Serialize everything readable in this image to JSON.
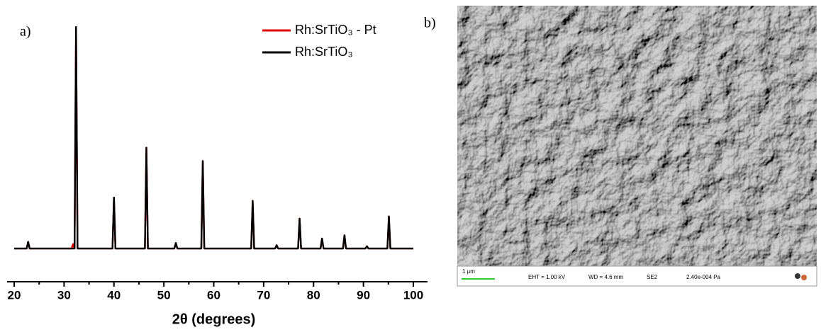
{
  "chart_data": {
    "type": "line",
    "annotation": "a)",
    "xlabel": "2θ (degrees)",
    "x": [
      20,
      22.5,
      22.8,
      23.1,
      31.5,
      31.8,
      32.1,
      32.4,
      32.7,
      39.7,
      40.0,
      40.3,
      46.2,
      46.5,
      46.8,
      52.1,
      52.4,
      52.7,
      57.5,
      57.8,
      58.1,
      67.5,
      67.8,
      68.1,
      72.3,
      72.6,
      72.9,
      76.9,
      77.2,
      77.5,
      81.4,
      81.7,
      82.0,
      85.9,
      86.2,
      86.5,
      90.4,
      90.7,
      91.0,
      94.8,
      95.1,
      95.4,
      100
    ],
    "series": [
      {
        "name": "Rh:SrTiO₃ - Pt",
        "color": "#e00000",
        "values": [
          0,
          0,
          3,
          0,
          0,
          2,
          0,
          99.5,
          0,
          0,
          23,
          0,
          0,
          45.5,
          0,
          0,
          2.5,
          0,
          0,
          39.5,
          0,
          0,
          21.5,
          0,
          0,
          1.5,
          0,
          0,
          13.5,
          0,
          0,
          4.5,
          0,
          0,
          6,
          0,
          0,
          1,
          0,
          0,
          14.5,
          0,
          0
        ]
      },
      {
        "name": "Rh:SrTiO₃",
        "color": "#000000",
        "values": [
          0,
          0,
          3,
          0,
          0,
          0,
          0,
          100,
          0,
          0,
          23,
          0,
          0,
          45.5,
          0,
          0,
          2.5,
          0,
          0,
          39.5,
          0,
          0,
          21.5,
          0,
          0,
          1.5,
          0,
          0,
          13.5,
          0,
          0,
          4.5,
          0,
          0,
          6,
          0,
          0,
          1,
          0,
          0,
          14.5,
          0,
          0
        ]
      }
    ],
    "xlim": [
      20,
      100
    ],
    "xticks": [
      20,
      30,
      40,
      50,
      60,
      70,
      80,
      90,
      100
    ],
    "xminor_ticks": [
      25,
      35,
      45,
      55,
      65,
      75,
      85,
      95
    ],
    "ylim": [
      -15,
      105
    ],
    "legend": "upper right"
  },
  "image_panel": {
    "label": "b)",
    "info_bar": {
      "scale": "1 µm",
      "eht": "EHT = 1.00 kV",
      "wd": "WD = 4.6 mm",
      "detector": "SE2",
      "pressure": "2.40e-004 Pa"
    }
  }
}
